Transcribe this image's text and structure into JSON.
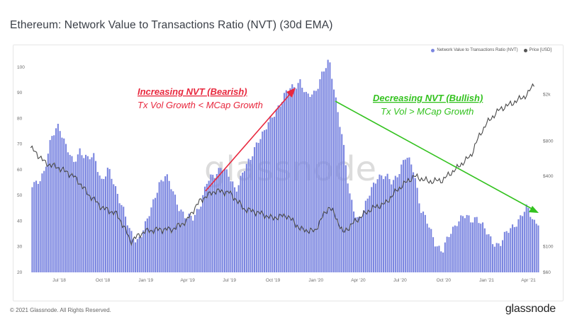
{
  "title": "Ethereum: Network Value to Transactions Ratio (NVT) (30d EMA)",
  "footer": {
    "copyright": "© 2021 Glassnode. All Rights Reserved.",
    "brand": "glassnode"
  },
  "watermark": "glassnode",
  "colors": {
    "bars": "#7b86e0",
    "price": "#4a4a4a",
    "bearish": "#e8283e",
    "bullish": "#33c21f"
  },
  "chart_data": {
    "type": "bar",
    "title": "Ethereum: Network Value to Transactions Ratio (NVT) (30d EMA)",
    "legend": [
      "Network Value to Transactions Ratio (NVT)",
      "Price [USD]"
    ],
    "legend_position": "top-right",
    "grid": false,
    "x_ticks": [
      "Jul '18",
      "Oct '18",
      "Jan '19",
      "Apr '19",
      "Jul '19",
      "Oct '19",
      "Jan '20",
      "Apr '20",
      "Jul '20",
      "Oct '20",
      "Jan '21",
      "Apr '21"
    ],
    "y_left_ticks": [
      "100",
      "90",
      "80",
      "70",
      "60",
      "50",
      "40",
      "30",
      "20"
    ],
    "y_left_range": [
      20,
      103
    ],
    "y_right_ticks": [
      "$2k",
      "$800",
      "$400",
      "$100",
      "$60"
    ],
    "y_right_scale": "log",
    "y_right_range": [
      60,
      4000
    ],
    "series": [
      {
        "name": "Network Value to Transactions Ratio (NVT)",
        "type": "bar",
        "x": [
          "2018-05-01",
          "2018-05-15",
          "2018-06-01",
          "2018-06-15",
          "2018-07-01",
          "2018-07-15",
          "2018-08-01",
          "2018-08-15",
          "2018-09-01",
          "2018-09-15",
          "2018-10-01",
          "2018-10-15",
          "2018-11-01",
          "2018-11-15",
          "2018-12-01",
          "2018-12-15",
          "2019-01-01",
          "2019-01-15",
          "2019-02-01",
          "2019-02-15",
          "2019-03-01",
          "2019-03-15",
          "2019-04-01",
          "2019-04-15",
          "2019-05-01",
          "2019-05-15",
          "2019-06-01",
          "2019-06-15",
          "2019-07-01",
          "2019-07-15",
          "2019-08-01",
          "2019-08-15",
          "2019-09-01",
          "2019-09-15",
          "2019-10-01",
          "2019-10-15",
          "2019-11-01",
          "2019-11-15",
          "2019-12-01",
          "2019-12-15",
          "2020-01-01",
          "2020-01-15",
          "2020-02-01",
          "2020-02-15",
          "2020-03-01",
          "2020-03-15",
          "2020-04-01",
          "2020-04-15",
          "2020-05-01",
          "2020-05-15",
          "2020-06-01",
          "2020-06-15",
          "2020-07-01",
          "2020-07-15",
          "2020-08-01",
          "2020-08-15",
          "2020-09-01",
          "2020-09-15",
          "2020-10-01",
          "2020-10-15",
          "2020-11-01",
          "2020-11-15",
          "2020-12-01",
          "2020-12-15",
          "2021-01-01",
          "2021-01-15",
          "2021-02-01",
          "2021-02-15",
          "2021-03-01",
          "2021-03-15",
          "2021-04-01",
          "2021-04-15"
        ],
        "values": [
          53,
          55,
          60,
          72,
          78,
          70,
          62,
          68,
          64,
          65,
          56,
          60,
          52,
          46,
          35,
          32,
          38,
          44,
          55,
          58,
          52,
          46,
          41,
          41,
          47,
          55,
          58,
          62,
          57,
          52,
          60,
          63,
          72,
          75,
          80,
          85,
          90,
          92,
          95,
          88,
          90,
          97,
          102,
          88,
          72,
          50,
          41,
          44,
          52,
          58,
          57,
          55,
          60,
          65,
          60,
          45,
          38,
          32,
          28,
          34,
          40,
          42,
          40,
          42,
          36,
          32,
          31,
          35,
          38,
          41,
          45,
          40
        ]
      },
      {
        "name": "Price [USD]",
        "type": "line",
        "x": [
          "2018-05-01",
          "2018-06-01",
          "2018-07-01",
          "2018-08-01",
          "2018-09-01",
          "2018-10-01",
          "2018-11-01",
          "2018-12-01",
          "2019-01-01",
          "2019-02-01",
          "2019-03-01",
          "2019-04-01",
          "2019-05-01",
          "2019-06-01",
          "2019-07-01",
          "2019-08-01",
          "2019-09-01",
          "2019-10-01",
          "2019-11-01",
          "2019-12-01",
          "2020-01-01",
          "2020-02-01",
          "2020-03-01",
          "2020-04-01",
          "2020-05-01",
          "2020-06-01",
          "2020-07-01",
          "2020-08-01",
          "2020-09-01",
          "2020-10-01",
          "2020-11-01",
          "2020-12-01",
          "2021-01-01",
          "2021-02-01",
          "2021-03-01",
          "2021-04-01",
          "2021-04-15"
        ],
        "values": [
          700,
          520,
          470,
          400,
          280,
          215,
          190,
          110,
          135,
          140,
          140,
          165,
          250,
          300,
          290,
          210,
          195,
          175,
          185,
          140,
          135,
          220,
          130,
          170,
          210,
          235,
          320,
          400,
          360,
          370,
          470,
          600,
          1100,
          1500,
          1700,
          2000,
          2500
        ]
      }
    ]
  },
  "annotations": {
    "bearish": {
      "title": "Increasing NVT (Bearish)",
      "subtitle": "Tx Vol Growth < MCap Growth"
    },
    "bullish": {
      "title": "Decreasing NVT (Bullish)",
      "subtitle": "Tx Vol > MCap Growth"
    }
  }
}
